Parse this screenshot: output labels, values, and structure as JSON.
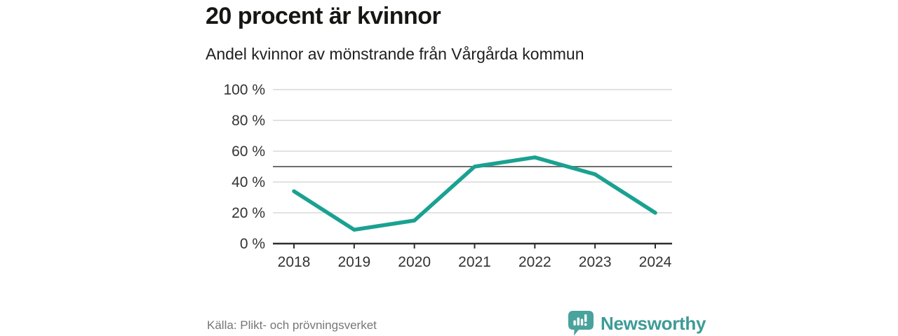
{
  "chart_data": {
    "type": "line",
    "title": "20 procent är kvinnor",
    "subtitle": "Andel kvinnor av mönstrande från Vårgårda kommun",
    "x": [
      "2018",
      "2019",
      "2020",
      "2021",
      "2022",
      "2023",
      "2024"
    ],
    "series": [
      {
        "name": "Andel kvinnor av mönstrande",
        "values": [
          34,
          9,
          15,
          50,
          56,
          45,
          20
        ]
      }
    ],
    "ylim": [
      0,
      100
    ],
    "yticks": [
      0,
      20,
      40,
      60,
      80,
      100
    ],
    "ytick_suffix": " %",
    "reference_line": 50,
    "grid": true,
    "legend_position": "none",
    "colors": {
      "line": "#1aa191",
      "grid": "#d9d9d9",
      "reference": "#6e6e6e",
      "axis": "#2e2e2e",
      "tick_text": "#333333"
    }
  },
  "footer": {
    "source": "Källa: Plikt- och prövningsverket",
    "brand_name": "Newsworthy",
    "brand_color": "#3d9b96",
    "brand_icon": "speech-bubble-bar-chart-icon"
  }
}
